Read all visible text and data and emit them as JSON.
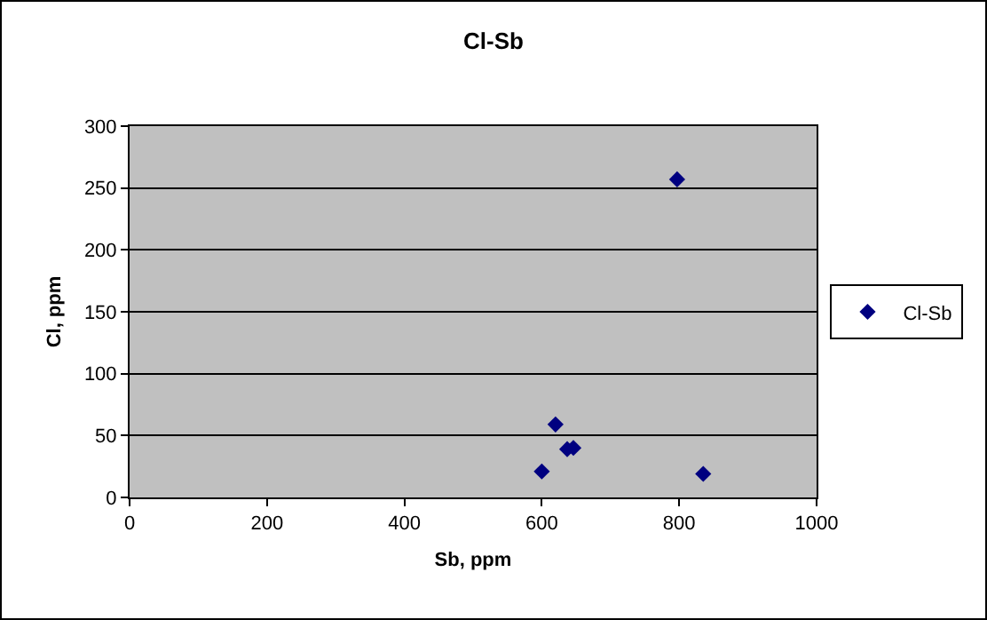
{
  "chart_data": {
    "type": "scatter",
    "title": "Cl-Sb",
    "xlabel": "Sb, ppm",
    "ylabel": "Cl, ppm",
    "x": [
      797,
      620,
      637,
      646,
      600,
      835
    ],
    "series": [
      {
        "name": "Cl-Sb",
        "color": "#000080",
        "values": [
          257,
          59,
          39,
          40,
          21,
          19
        ]
      }
    ],
    "xlim": [
      0,
      1000
    ],
    "xticks": [
      0,
      200,
      400,
      600,
      800,
      1000
    ],
    "ylim": [
      0,
      300
    ],
    "yticks": [
      0,
      50,
      100,
      150,
      200,
      250,
      300
    ],
    "grid": "y",
    "legend": "right",
    "marker": "diamond"
  }
}
